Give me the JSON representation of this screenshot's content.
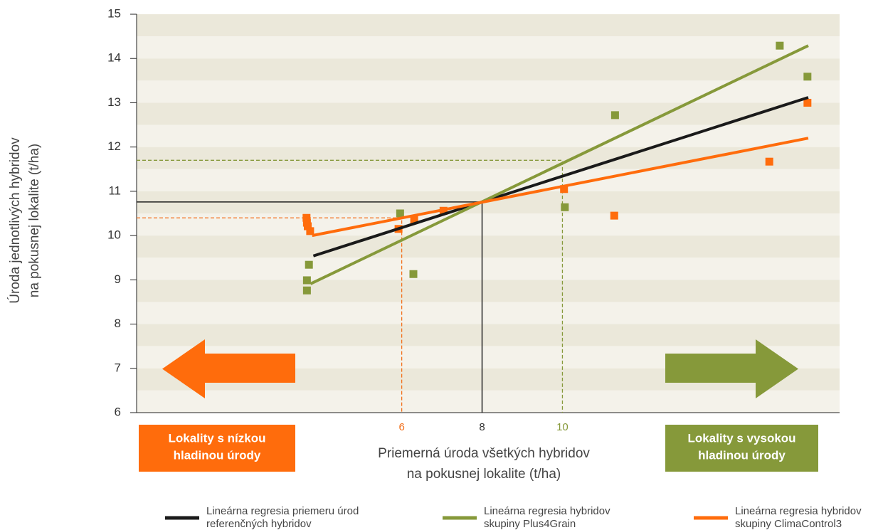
{
  "chart_data": {
    "type": "scatter",
    "y_label": [
      "Úroda jednotlivých hybridov",
      "na pokusnej lokalite (t/ha)"
    ],
    "x_label": [
      "Priemerná úroda všetkých hybridov",
      "na pokusnej lokalite (t/ha)"
    ],
    "xlim": [
      -0.6,
      16.9
    ],
    "ylim": [
      6,
      15
    ],
    "xticks": [
      6,
      8,
      10
    ],
    "yticks": [
      6,
      7,
      8,
      9,
      10,
      11,
      12,
      13,
      14,
      15
    ],
    "guides": [
      {
        "x": 8,
        "y": 10.76,
        "color": "#222222",
        "dashed": false
      },
      {
        "x": 10,
        "y": 11.7,
        "color": "#86993a",
        "dashed": true
      },
      {
        "x": 6,
        "y": 10.4,
        "color": "#f26f1a",
        "dashed": true
      }
    ],
    "zones": [
      {
        "label": [
          "Lokality s nízkou",
          "hladinou úrody"
        ],
        "color": "#ff6c0c",
        "direction": "left"
      },
      {
        "label": [
          "Lokality s vysokou",
          "hladinou úrody"
        ],
        "color": "#86993a",
        "direction": "right"
      }
    ],
    "series": [
      {
        "name": [
          "Lineárna regresia priemeru úrod",
          "referenčných hybridov"
        ],
        "color": "#1a1a1a",
        "line": {
          "x": [
            3.8,
            16.12
          ],
          "y": [
            9.54,
            13.12
          ]
        }
      },
      {
        "name": [
          "Lineárna regresia hybridov",
          "skupiny Plus4Grain"
        ],
        "color": "#86993a",
        "line": {
          "x": [
            3.73,
            16.12
          ],
          "y": [
            8.91,
            14.29
          ]
        },
        "points": {
          "x": [
            3.64,
            3.64,
            3.69,
            5.96,
            6.29,
            10.06,
            11.31,
            15.41,
            16.1
          ],
          "y": [
            8.76,
            8.99,
            9.34,
            10.5,
            9.13,
            10.64,
            12.72,
            14.29,
            13.59
          ]
        }
      },
      {
        "name": [
          "Lineárna regresia hybridov",
          "skupiny ClimaControl3"
        ],
        "color": "#ff6c0c",
        "line": {
          "x": [
            3.77,
            16.12
          ],
          "y": [
            10.0,
            12.2
          ]
        },
        "points": {
          "x": [
            3.63,
            3.64,
            3.66,
            3.72,
            5.92,
            6.31,
            7.04,
            10.04,
            11.29,
            15.15,
            16.1
          ],
          "y": [
            10.4,
            10.29,
            10.21,
            10.1,
            10.15,
            10.36,
            10.56,
            11.05,
            10.45,
            11.67,
            13.0
          ]
        }
      }
    ]
  }
}
